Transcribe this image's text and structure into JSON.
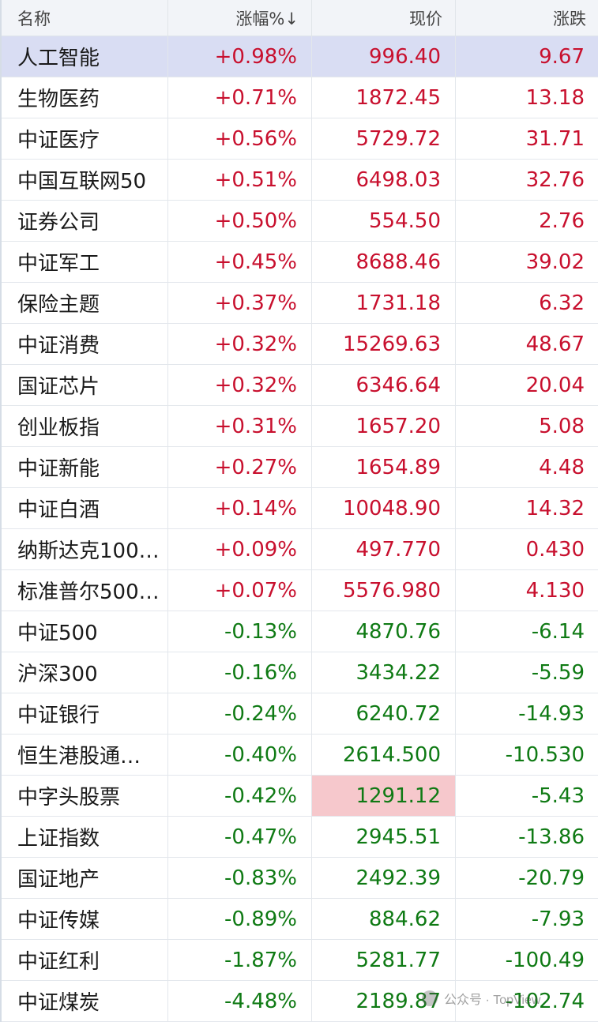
{
  "columns": [
    "名称",
    "涨幅%↓",
    "现价",
    "涨跌"
  ],
  "rows": [
    {
      "name": "人工智能",
      "change_pct": "+0.98%",
      "price": "996.40",
      "change": "9.67"
    },
    {
      "name": "生物医药",
      "change_pct": "+0.71%",
      "price": "1872.45",
      "change": "13.18"
    },
    {
      "name": "中证医疗",
      "change_pct": "+0.56%",
      "price": "5729.72",
      "change": "31.71"
    },
    {
      "name": "中国互联网50",
      "change_pct": "+0.51%",
      "price": "6498.03",
      "change": "32.76"
    },
    {
      "name": "证券公司",
      "change_pct": "+0.50%",
      "price": "554.50",
      "change": "2.76"
    },
    {
      "name": "中证军工",
      "change_pct": "+0.45%",
      "price": "8688.46",
      "change": "39.02"
    },
    {
      "name": "保险主题",
      "change_pct": "+0.37%",
      "price": "1731.18",
      "change": "6.32"
    },
    {
      "name": "中证消费",
      "change_pct": "+0.32%",
      "price": "15269.63",
      "change": "48.67"
    },
    {
      "name": "国证芯片",
      "change_pct": "+0.32%",
      "price": "6346.64",
      "change": "20.04"
    },
    {
      "name": "创业板指",
      "change_pct": "+0.31%",
      "price": "1657.20",
      "change": "5.08"
    },
    {
      "name": "中证新能",
      "change_pct": "+0.27%",
      "price": "1654.89",
      "change": "4.48"
    },
    {
      "name": "中证白酒",
      "change_pct": "+0.14%",
      "price": "10048.90",
      "change": "14.32"
    },
    {
      "name": "纳斯达克100…",
      "change_pct": "+0.09%",
      "price": "497.770",
      "change": "0.430"
    },
    {
      "name": "标准普尔500…",
      "change_pct": "+0.07%",
      "price": "5576.980",
      "change": "4.130"
    },
    {
      "name": "中证500",
      "change_pct": "-0.13%",
      "price": "4870.76",
      "change": "-6.14"
    },
    {
      "name": "沪深300",
      "change_pct": "-0.16%",
      "price": "3434.22",
      "change": "-5.59"
    },
    {
      "name": "中证银行",
      "change_pct": "-0.24%",
      "price": "6240.72",
      "change": "-14.93"
    },
    {
      "name": "恒生港股通…",
      "change_pct": "-0.40%",
      "price": "2614.500",
      "change": "-10.530"
    },
    {
      "name": "中字头股票",
      "change_pct": "-0.42%",
      "price": "1291.12",
      "change": "-5.43"
    },
    {
      "name": "上证指数",
      "change_pct": "-0.47%",
      "price": "2945.51",
      "change": "-13.86"
    },
    {
      "name": "国证地产",
      "change_pct": "-0.83%",
      "price": "2492.39",
      "change": "-20.79"
    },
    {
      "name": "中证传媒",
      "change_pct": "-0.89%",
      "price": "884.62",
      "change": "-7.93"
    },
    {
      "name": "中证红利",
      "change_pct": "-1.87%",
      "price": "5281.77",
      "change": "-100.49"
    },
    {
      "name": "中证煤炭",
      "change_pct": "-4.48%",
      "price": "2189.87",
      "change": "-102.74"
    }
  ],
  "selected_row": 0,
  "highlighted_price_row": 18,
  "colors": {
    "up": "#c8102e",
    "down": "#0f7a14",
    "selected_bg": "#d9ddf3",
    "highlight_bg": "#f6c8cc"
  },
  "watermark": "公众号 · TopView"
}
